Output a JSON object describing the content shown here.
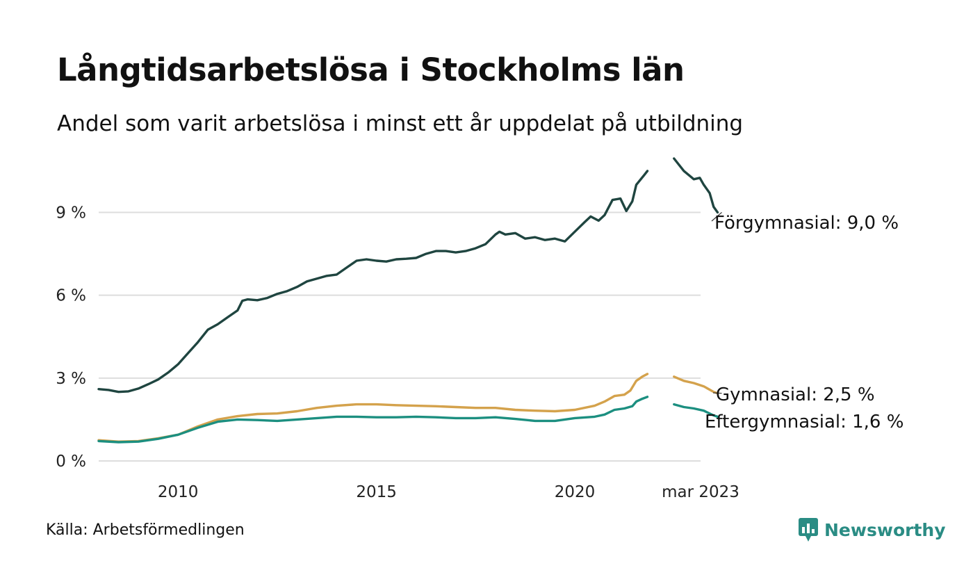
{
  "title": "Långtidsarbetslösa i Stockholms län",
  "subtitle": "Andel som varit arbetslösa i minst ett år uppdelat på utbildning",
  "source": "Källa: Arbetsförmedlingen",
  "brand": {
    "name": "Newsworthy",
    "color": "#2a8c84",
    "icon": "newsworthy-logo-icon"
  },
  "chart_data": {
    "type": "line",
    "title": "Långtidsarbetslösa i Stockholms län",
    "subtitle": "Andel som varit arbetslösa i minst ett år uppdelat på utbildning",
    "xlabel": "",
    "ylabel": "",
    "xlim": [
      2008.0,
      2023.17
    ],
    "ylim": [
      0,
      10.9
    ],
    "yticks": [
      {
        "value": 0,
        "label": "0 %"
      },
      {
        "value": 3,
        "label": "3 %"
      },
      {
        "value": 6,
        "label": "6 %"
      },
      {
        "value": 9,
        "label": "9 %"
      }
    ],
    "xticks": [
      {
        "value": 2010,
        "label": "2010"
      },
      {
        "value": 2015,
        "label": "2015"
      },
      {
        "value": 2020,
        "label": "2020"
      },
      {
        "value": 2023.17,
        "label": "mar 2023"
      }
    ],
    "grid": "horizontal",
    "legend": "end-of-line labels",
    "series": [
      {
        "name": "Förgymnasial",
        "color": "#1f4540",
        "end_label": "Förgymnasial: 9,0 %",
        "segments": [
          [
            [
              2008.0,
              2.6
            ],
            [
              2008.25,
              2.57
            ],
            [
              2008.5,
              2.5
            ],
            [
              2008.75,
              2.52
            ],
            [
              2009.0,
              2.62
            ],
            [
              2009.25,
              2.78
            ],
            [
              2009.5,
              2.95
            ],
            [
              2009.75,
              3.2
            ],
            [
              2010.0,
              3.5
            ],
            [
              2010.25,
              3.9
            ],
            [
              2010.5,
              4.3
            ],
            [
              2010.75,
              4.75
            ],
            [
              2011.0,
              4.95
            ],
            [
              2011.25,
              5.2
            ],
            [
              2011.5,
              5.45
            ],
            [
              2011.62,
              5.8
            ],
            [
              2011.75,
              5.85
            ],
            [
              2012.0,
              5.82
            ],
            [
              2012.25,
              5.9
            ],
            [
              2012.5,
              6.05
            ],
            [
              2012.75,
              6.15
            ],
            [
              2013.0,
              6.3
            ],
            [
              2013.25,
              6.5
            ],
            [
              2013.5,
              6.6
            ],
            [
              2013.75,
              6.7
            ],
            [
              2014.0,
              6.75
            ],
            [
              2014.25,
              7.0
            ],
            [
              2014.5,
              7.25
            ],
            [
              2014.75,
              7.3
            ],
            [
              2015.0,
              7.25
            ],
            [
              2015.25,
              7.22
            ],
            [
              2015.5,
              7.3
            ],
            [
              2015.75,
              7.32
            ],
            [
              2016.0,
              7.35
            ],
            [
              2016.25,
              7.5
            ],
            [
              2016.5,
              7.6
            ],
            [
              2016.75,
              7.6
            ],
            [
              2017.0,
              7.55
            ],
            [
              2017.25,
              7.6
            ],
            [
              2017.5,
              7.7
            ],
            [
              2017.75,
              7.85
            ],
            [
              2018.0,
              8.2
            ],
            [
              2018.1,
              8.3
            ],
            [
              2018.25,
              8.2
            ],
            [
              2018.5,
              8.25
            ],
            [
              2018.75,
              8.05
            ],
            [
              2019.0,
              8.1
            ],
            [
              2019.25,
              8.0
            ],
            [
              2019.5,
              8.05
            ],
            [
              2019.75,
              7.95
            ],
            [
              2020.0,
              8.3
            ],
            [
              2020.25,
              8.65
            ],
            [
              2020.4,
              8.85
            ],
            [
              2020.6,
              8.7
            ],
            [
              2020.75,
              8.9
            ],
            [
              2020.95,
              9.45
            ],
            [
              2021.15,
              9.5
            ],
            [
              2021.3,
              9.05
            ],
            [
              2021.45,
              9.4
            ],
            [
              2021.55,
              10.0
            ],
            [
              2021.75,
              10.35
            ],
            [
              2021.83,
              10.5
            ]
          ],
          [
            [
              2022.5,
              10.95
            ],
            [
              2022.75,
              10.5
            ],
            [
              2023.0,
              10.2
            ],
            [
              2023.15,
              10.25
            ],
            [
              2023.25,
              10.0
            ],
            [
              2023.4,
              9.7
            ],
            [
              2023.5,
              9.2
            ],
            [
              2023.6,
              9.0
            ]
          ]
        ]
      },
      {
        "name": "Gymnasial",
        "color": "#d4a24c",
        "end_label": "Gymnasial: 2,5 %",
        "segments": [
          [
            [
              2008.0,
              0.75
            ],
            [
              2008.5,
              0.7
            ],
            [
              2009.0,
              0.72
            ],
            [
              2009.5,
              0.82
            ],
            [
              2010.0,
              0.95
            ],
            [
              2010.5,
              1.25
            ],
            [
              2011.0,
              1.5
            ],
            [
              2011.5,
              1.62
            ],
            [
              2012.0,
              1.7
            ],
            [
              2012.5,
              1.72
            ],
            [
              2013.0,
              1.8
            ],
            [
              2013.5,
              1.92
            ],
            [
              2014.0,
              2.0
            ],
            [
              2014.5,
              2.05
            ],
            [
              2015.0,
              2.05
            ],
            [
              2015.5,
              2.02
            ],
            [
              2016.0,
              2.0
            ],
            [
              2016.5,
              1.98
            ],
            [
              2017.0,
              1.95
            ],
            [
              2017.5,
              1.92
            ],
            [
              2018.0,
              1.92
            ],
            [
              2018.5,
              1.85
            ],
            [
              2019.0,
              1.82
            ],
            [
              2019.5,
              1.8
            ],
            [
              2020.0,
              1.85
            ],
            [
              2020.5,
              2.0
            ],
            [
              2020.75,
              2.15
            ],
            [
              2021.0,
              2.35
            ],
            [
              2021.25,
              2.4
            ],
            [
              2021.4,
              2.55
            ],
            [
              2021.55,
              2.9
            ],
            [
              2021.7,
              3.05
            ],
            [
              2021.83,
              3.15
            ]
          ],
          [
            [
              2022.5,
              3.05
            ],
            [
              2022.75,
              2.9
            ],
            [
              2023.0,
              2.82
            ],
            [
              2023.25,
              2.7
            ],
            [
              2023.5,
              2.5
            ],
            [
              2023.6,
              2.45
            ]
          ]
        ]
      },
      {
        "name": "Eftergymnasial",
        "color": "#1c8f80",
        "end_label": "Eftergymnasial: 1,6 %",
        "segments": [
          [
            [
              2008.0,
              0.72
            ],
            [
              2008.5,
              0.68
            ],
            [
              2009.0,
              0.7
            ],
            [
              2009.5,
              0.8
            ],
            [
              2010.0,
              0.95
            ],
            [
              2010.5,
              1.2
            ],
            [
              2011.0,
              1.42
            ],
            [
              2011.5,
              1.5
            ],
            [
              2012.0,
              1.48
            ],
            [
              2012.5,
              1.45
            ],
            [
              2013.0,
              1.5
            ],
            [
              2013.5,
              1.55
            ],
            [
              2014.0,
              1.6
            ],
            [
              2014.5,
              1.6
            ],
            [
              2015.0,
              1.58
            ],
            [
              2015.5,
              1.58
            ],
            [
              2016.0,
              1.6
            ],
            [
              2016.5,
              1.58
            ],
            [
              2017.0,
              1.55
            ],
            [
              2017.5,
              1.55
            ],
            [
              2018.0,
              1.58
            ],
            [
              2018.5,
              1.52
            ],
            [
              2019.0,
              1.45
            ],
            [
              2019.5,
              1.45
            ],
            [
              2020.0,
              1.55
            ],
            [
              2020.5,
              1.6
            ],
            [
              2020.75,
              1.68
            ],
            [
              2021.0,
              1.85
            ],
            [
              2021.25,
              1.9
            ],
            [
              2021.45,
              1.98
            ],
            [
              2021.55,
              2.15
            ],
            [
              2021.7,
              2.25
            ],
            [
              2021.83,
              2.32
            ]
          ],
          [
            [
              2022.5,
              2.05
            ],
            [
              2022.75,
              1.95
            ],
            [
              2023.0,
              1.9
            ],
            [
              2023.25,
              1.82
            ],
            [
              2023.5,
              1.65
            ],
            [
              2023.6,
              1.6
            ]
          ]
        ]
      }
    ]
  }
}
